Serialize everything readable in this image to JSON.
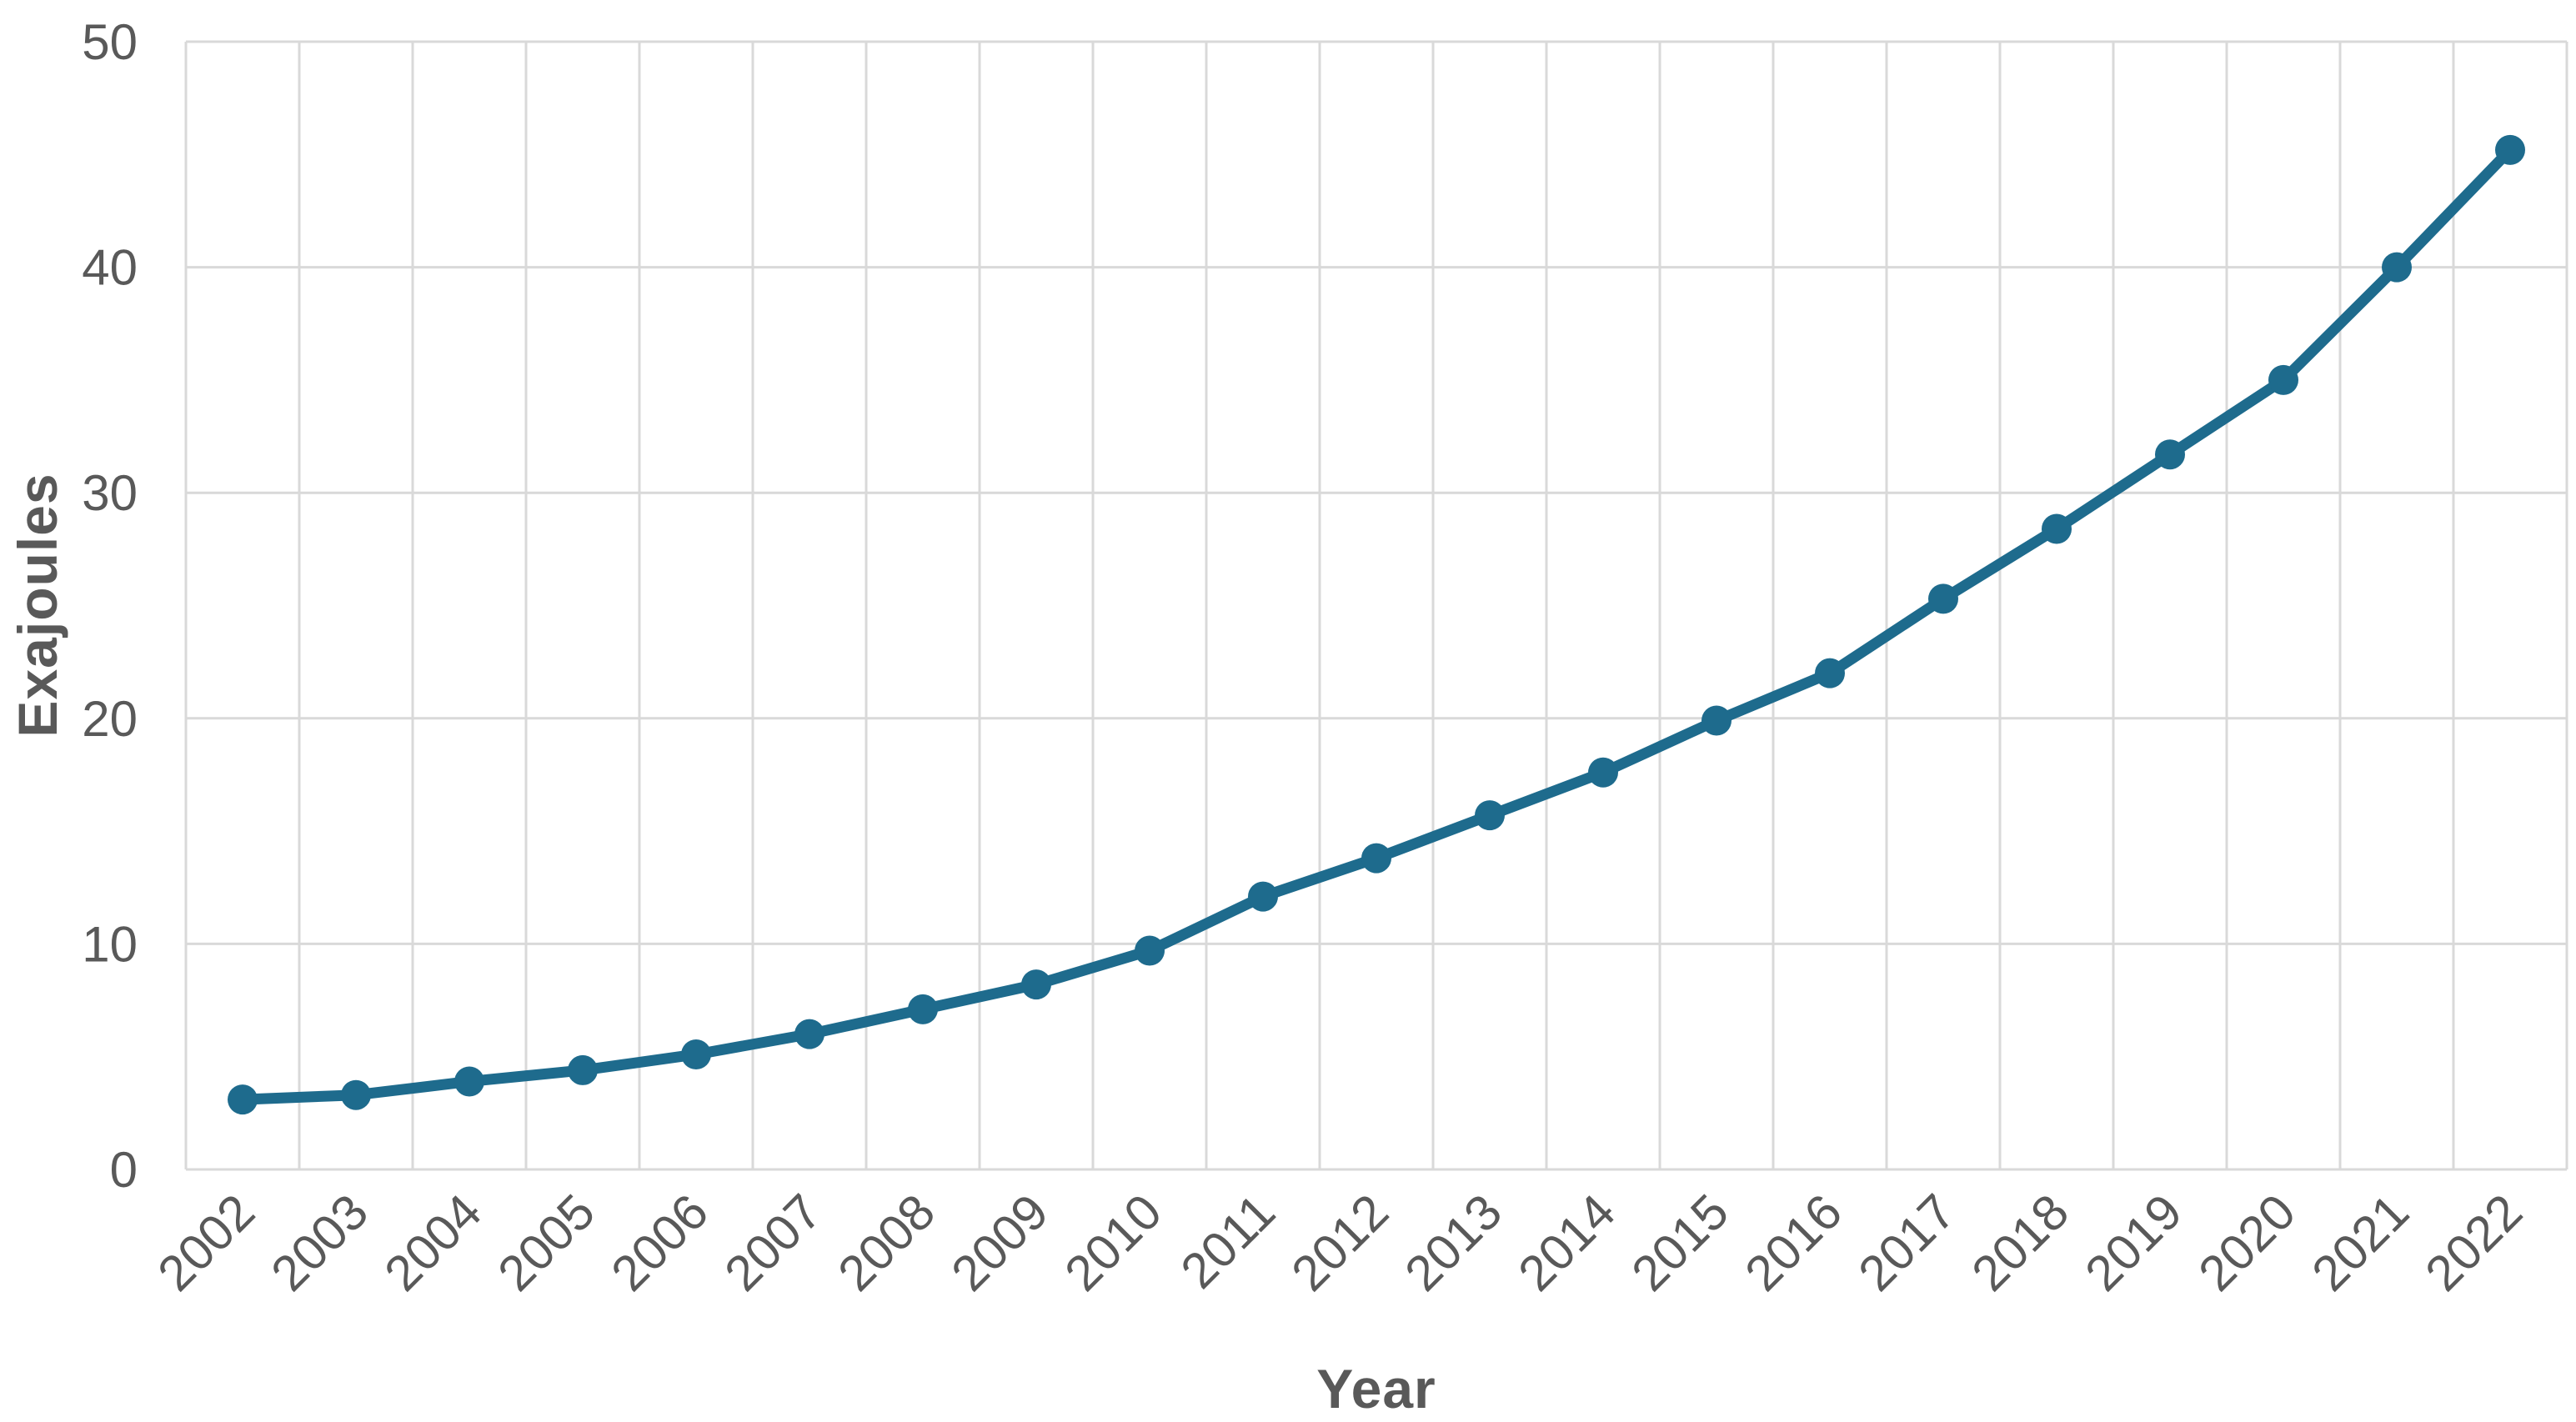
{
  "chart_data": {
    "type": "line",
    "title": "",
    "xlabel": "Year",
    "ylabel": "Exajoules",
    "categories": [
      "2002",
      "2003",
      "2004",
      "2005",
      "2006",
      "2007",
      "2008",
      "2009",
      "2010",
      "2011",
      "2012",
      "2013",
      "2014",
      "2015",
      "2016",
      "2017",
      "2018",
      "2019",
      "2020",
      "2021",
      "2022"
    ],
    "series": [
      {
        "name": "Exajoules",
        "values": [
          3.1,
          3.3,
          3.9,
          4.4,
          5.1,
          6.0,
          7.1,
          8.2,
          9.7,
          12.1,
          13.8,
          15.7,
          17.6,
          19.9,
          22.0,
          25.3,
          28.4,
          31.7,
          35.0,
          40.0,
          45.2
        ]
      }
    ],
    "ylim": [
      0,
      50
    ],
    "yticks": [
      0,
      10,
      20,
      30,
      40,
      50
    ],
    "grid": true,
    "legend_position": "none",
    "marker": "circle",
    "colors": {
      "line": "#1E6B8D",
      "marker": "#1E6B8D",
      "grid": "#D9D9D9",
      "tick_text": "#595959",
      "axis_title_text": "#595959",
      "background": "#FFFFFF"
    }
  }
}
